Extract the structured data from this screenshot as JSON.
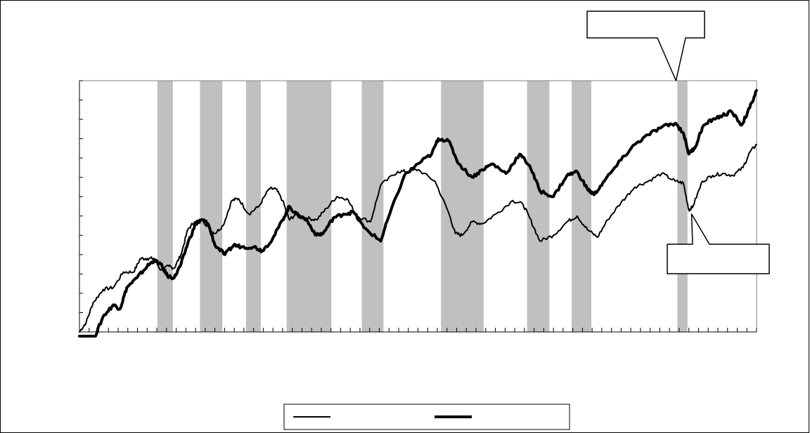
{
  "chart_data": {
    "type": "line",
    "title": "",
    "xlabel": "",
    "ylabel": "",
    "xlim": [
      0,
      1
    ],
    "ylim": [
      0,
      13
    ],
    "grid": false,
    "legend_position": "bottom-center",
    "shaded_periods": [
      [
        0.115,
        0.138
      ],
      [
        0.178,
        0.211
      ],
      [
        0.246,
        0.268
      ],
      [
        0.306,
        0.372
      ],
      [
        0.417,
        0.449
      ],
      [
        0.534,
        0.597
      ],
      [
        0.661,
        0.694
      ],
      [
        0.727,
        0.756
      ],
      [
        0.883,
        0.898
      ]
    ],
    "series": [
      {
        "name": "",
        "stroke": "#000000",
        "weight": "thin",
        "points": [
          [
            0.0,
            0.0
          ],
          [
            0.01,
            0.5
          ],
          [
            0.02,
            1.5
          ],
          [
            0.035,
            2.2
          ],
          [
            0.05,
            2.3
          ],
          [
            0.065,
            3.1
          ],
          [
            0.08,
            3.1
          ],
          [
            0.09,
            3.8
          ],
          [
            0.1,
            3.8
          ],
          [
            0.11,
            3.8
          ],
          [
            0.12,
            3.2
          ],
          [
            0.132,
            3.4
          ],
          [
            0.14,
            3.3
          ],
          [
            0.15,
            4.0
          ],
          [
            0.16,
            5.3
          ],
          [
            0.17,
            5.7
          ],
          [
            0.182,
            5.8
          ],
          [
            0.192,
            5.3
          ],
          [
            0.2,
            5.1
          ],
          [
            0.212,
            5.5
          ],
          [
            0.225,
            6.8
          ],
          [
            0.235,
            6.9
          ],
          [
            0.25,
            6.1
          ],
          [
            0.265,
            6.5
          ],
          [
            0.28,
            7.4
          ],
          [
            0.29,
            7.4
          ],
          [
            0.3,
            6.8
          ],
          [
            0.31,
            5.8
          ],
          [
            0.32,
            6.1
          ],
          [
            0.335,
            5.9
          ],
          [
            0.35,
            5.8
          ],
          [
            0.365,
            6.4
          ],
          [
            0.38,
            7.0
          ],
          [
            0.395,
            6.9
          ],
          [
            0.41,
            6.0
          ],
          [
            0.43,
            5.7
          ],
          [
            0.445,
            7.6
          ],
          [
            0.47,
            8.3
          ],
          [
            0.485,
            8.3
          ],
          [
            0.5,
            8.4
          ],
          [
            0.525,
            7.8
          ],
          [
            0.545,
            6.2
          ],
          [
            0.555,
            5.1
          ],
          [
            0.565,
            5.0
          ],
          [
            0.58,
            5.7
          ],
          [
            0.595,
            5.6
          ],
          [
            0.615,
            6.1
          ],
          [
            0.64,
            6.8
          ],
          [
            0.655,
            6.6
          ],
          [
            0.665,
            5.9
          ],
          [
            0.68,
            4.7
          ],
          [
            0.7,
            5.0
          ],
          [
            0.72,
            5.7
          ],
          [
            0.735,
            6.0
          ],
          [
            0.75,
            5.3
          ],
          [
            0.765,
            4.9
          ],
          [
            0.78,
            5.8
          ],
          [
            0.8,
            6.7
          ],
          [
            0.82,
            7.5
          ],
          [
            0.84,
            7.8
          ],
          [
            0.86,
            8.2
          ],
          [
            0.88,
            7.8
          ],
          [
            0.892,
            7.7
          ],
          [
            0.9,
            6.3
          ],
          [
            0.906,
            6.5
          ],
          [
            0.92,
            7.8
          ],
          [
            0.935,
            8.1
          ],
          [
            0.95,
            8.2
          ],
          [
            0.965,
            8.1
          ],
          [
            0.98,
            8.5
          ],
          [
            0.99,
            9.3
          ],
          [
            1.0,
            9.7
          ]
        ]
      },
      {
        "name": "",
        "stroke": "#000000",
        "weight": "thick",
        "points": [
          [
            0.0,
            -0.4
          ],
          [
            0.02,
            -0.5
          ],
          [
            0.035,
            0.8
          ],
          [
            0.05,
            1.4
          ],
          [
            0.06,
            1.2
          ],
          [
            0.07,
            2.3
          ],
          [
            0.085,
            2.8
          ],
          [
            0.1,
            3.4
          ],
          [
            0.11,
            3.7
          ],
          [
            0.12,
            3.5
          ],
          [
            0.13,
            2.9
          ],
          [
            0.14,
            2.8
          ],
          [
            0.15,
            3.5
          ],
          [
            0.16,
            4.6
          ],
          [
            0.172,
            5.6
          ],
          [
            0.182,
            5.8
          ],
          [
            0.19,
            5.6
          ],
          [
            0.2,
            4.5
          ],
          [
            0.215,
            4.0
          ],
          [
            0.228,
            4.5
          ],
          [
            0.24,
            4.4
          ],
          [
            0.258,
            4.4
          ],
          [
            0.27,
            4.2
          ],
          [
            0.285,
            4.8
          ],
          [
            0.3,
            5.8
          ],
          [
            0.31,
            6.5
          ],
          [
            0.32,
            6.1
          ],
          [
            0.335,
            5.8
          ],
          [
            0.35,
            5.0
          ],
          [
            0.36,
            5.1
          ],
          [
            0.375,
            5.9
          ],
          [
            0.39,
            6.1
          ],
          [
            0.405,
            6.2
          ],
          [
            0.42,
            5.4
          ],
          [
            0.445,
            4.7
          ],
          [
            0.455,
            5.8
          ],
          [
            0.48,
            8.1
          ],
          [
            0.5,
            8.7
          ],
          [
            0.52,
            9.2
          ],
          [
            0.53,
            10.0
          ],
          [
            0.545,
            9.9
          ],
          [
            0.56,
            8.7
          ],
          [
            0.58,
            8.0
          ],
          [
            0.595,
            8.4
          ],
          [
            0.61,
            8.7
          ],
          [
            0.63,
            8.2
          ],
          [
            0.65,
            9.2
          ],
          [
            0.665,
            8.6
          ],
          [
            0.68,
            7.3
          ],
          [
            0.7,
            7.0
          ],
          [
            0.72,
            8.1
          ],
          [
            0.735,
            8.3
          ],
          [
            0.75,
            7.4
          ],
          [
            0.76,
            7.1
          ],
          [
            0.775,
            7.8
          ],
          [
            0.8,
            8.9
          ],
          [
            0.82,
            9.7
          ],
          [
            0.84,
            10.2
          ],
          [
            0.86,
            10.6
          ],
          [
            0.88,
            10.8
          ],
          [
            0.892,
            10.3
          ],
          [
            0.9,
            9.2
          ],
          [
            0.91,
            9.6
          ],
          [
            0.92,
            10.6
          ],
          [
            0.935,
            11.0
          ],
          [
            0.95,
            11.2
          ],
          [
            0.963,
            11.4
          ],
          [
            0.978,
            10.7
          ],
          [
            0.99,
            11.6
          ],
          [
            1.0,
            12.5
          ]
        ]
      }
    ],
    "callouts": [
      {
        "text": "",
        "target": [
          0.881,
          13.0
        ],
        "position": "top-right"
      },
      {
        "text": "",
        "target": [
          0.904,
          6.1
        ],
        "position": "right"
      }
    ],
    "legend_entries": [
      {
        "label": "",
        "stroke": "#000000",
        "weight": "thin"
      },
      {
        "label": "",
        "stroke": "#000000",
        "weight": "thick"
      }
    ]
  }
}
